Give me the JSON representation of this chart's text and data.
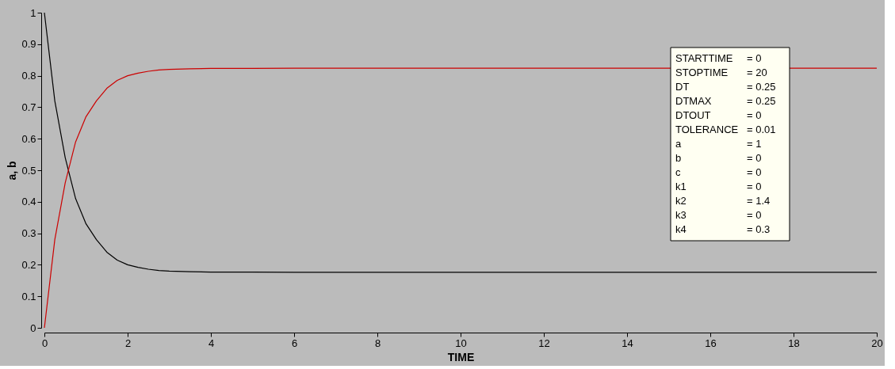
{
  "chart_data": {
    "type": "line",
    "xlabel": "TIME",
    "ylabel": "a, b",
    "x": [
      0,
      0.25,
      0.5,
      0.75,
      1,
      1.25,
      1.5,
      1.75,
      2,
      2.25,
      2.5,
      2.75,
      3,
      3.5,
      4,
      5,
      6,
      8,
      10,
      12,
      14,
      16,
      18,
      20
    ],
    "series": [
      {
        "color": "#000000",
        "values": [
          1,
          0.72,
          0.54,
          0.41,
          0.33,
          0.28,
          0.24,
          0.215,
          0.2,
          0.192,
          0.186,
          0.182,
          0.18,
          0.178,
          0.177,
          0.177,
          0.176,
          0.176,
          0.176,
          0.176,
          0.176,
          0.176,
          0.176,
          0.176
        ]
      },
      {
        "color": "#cc0000",
        "x": [
          0,
          0.25,
          0.5,
          0.75,
          1,
          1.25,
          1.5,
          1.75,
          2,
          2.25,
          2.5,
          2.75,
          3,
          3.5,
          4,
          5,
          6,
          8,
          10,
          12,
          14,
          18,
          20
        ],
        "values": [
          0,
          0.28,
          0.46,
          0.59,
          0.67,
          0.72,
          0.76,
          0.785,
          0.8,
          0.808,
          0.814,
          0.818,
          0.82,
          0.822,
          0.823,
          0.823,
          0.824,
          0.824,
          0.824,
          0.824,
          0.824,
          0.824,
          0.824
        ]
      }
    ],
    "xlim": [
      0,
      20
    ],
    "xticks": [
      0,
      2,
      4,
      6,
      8,
      10,
      12,
      14,
      16,
      18,
      20
    ],
    "ylim": [
      0,
      1
    ],
    "yticks": [
      0,
      0.1,
      0.2,
      0.3,
      0.4,
      0.5,
      0.6,
      0.7,
      0.8,
      0.9,
      1
    ],
    "grid": false,
    "legend": false,
    "marker": "none",
    "line_style": "solid",
    "annotations": [
      "STARTTIME = 0",
      "STOPTIME = 20",
      "DT = 0.25",
      "DTMAX = 0.25",
      "DTOUT = 0",
      "TOLERANCE = 0.01",
      "a = 1",
      "b = 0",
      "c = 0",
      "k1 = 0",
      "k2 = 1.4",
      "k3 = 0",
      "k4 = 0.3"
    ]
  }
}
